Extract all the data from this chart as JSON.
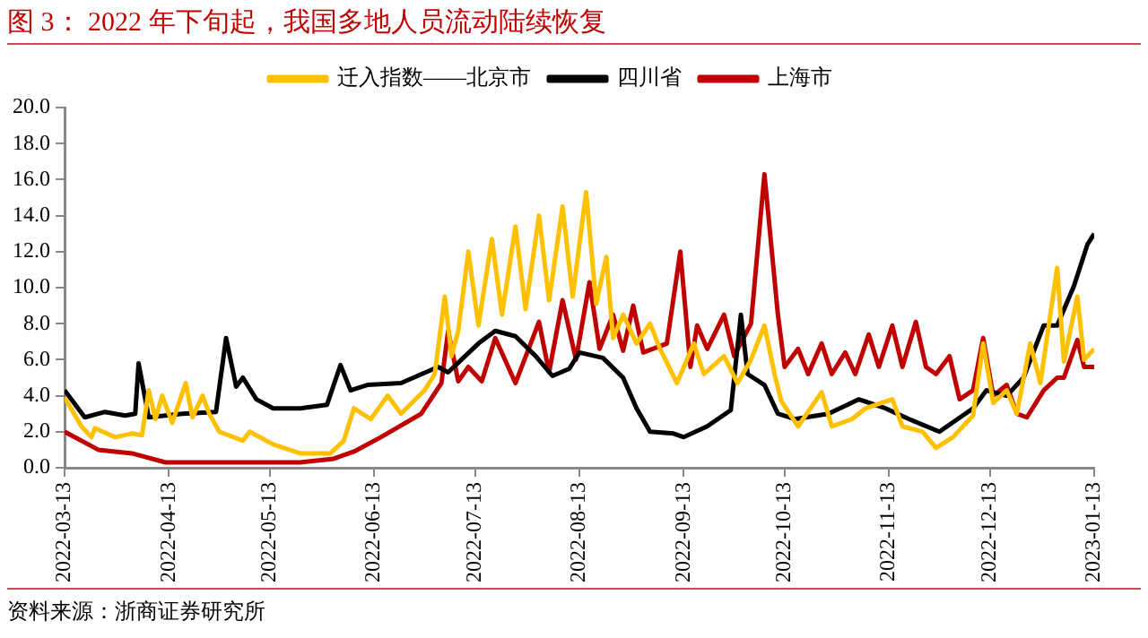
{
  "chart_data": {
    "type": "line",
    "title": "图 3：  2022 年下旬起，我国多地人员流动陆续恢复",
    "annotations": [
      "资料来源：浙商证券研究所"
    ],
    "legend": "top",
    "grid": false,
    "marker": "none",
    "line_style": "solid",
    "xlim": [
      "2022-03-13",
      "2023-01-13"
    ],
    "xticks": [
      "2022-03-13",
      "2022-04-13",
      "2022-05-13",
      "2022-06-13",
      "2022-07-13",
      "2022-08-13",
      "2022-09-13",
      "2022-10-13",
      "2022-11-13",
      "2022-12-13",
      "2023-01-13"
    ],
    "ylim": [
      0,
      20
    ],
    "yticks": [
      {
        "value": 0,
        "label": "0.0"
      },
      {
        "value": 2,
        "label": "2.0"
      },
      {
        "value": 4,
        "label": "4.0"
      },
      {
        "value": 6,
        "label": "6.0"
      },
      {
        "value": 8,
        "label": "8.0"
      },
      {
        "value": 10,
        "label": "10.0"
      },
      {
        "value": 12,
        "label": "12.0"
      },
      {
        "value": 14,
        "label": "14.0"
      },
      {
        "value": 16,
        "label": "16.0"
      },
      {
        "value": 18,
        "label": "18.0"
      },
      {
        "value": 20,
        "label": "20.0"
      }
    ],
    "series": [
      {
        "name": "迁入指数——北京市",
        "color": "#ffc000",
        "x": [
          "2022-03-13",
          "2022-03-18",
          "2022-03-21",
          "2022-03-22",
          "2022-03-28",
          "2022-04-02",
          "2022-04-05",
          "2022-04-07",
          "2022-04-09",
          "2022-04-11",
          "2022-04-14",
          "2022-04-18",
          "2022-04-20",
          "2022-04-23",
          "2022-04-25",
          "2022-04-28",
          "2022-05-05",
          "2022-05-07",
          "2022-05-14",
          "2022-05-22",
          "2022-05-31",
          "2022-06-04",
          "2022-06-07",
          "2022-06-12",
          "2022-06-17",
          "2022-06-21",
          "2022-06-28",
          "2022-07-01",
          "2022-07-04",
          "2022-07-06",
          "2022-07-08",
          "2022-07-11",
          "2022-07-14",
          "2022-07-18",
          "2022-07-21",
          "2022-07-25",
          "2022-07-28",
          "2022-08-01",
          "2022-08-04",
          "2022-08-08",
          "2022-08-11",
          "2022-08-15",
          "2022-08-18",
          "2022-08-21",
          "2022-08-23",
          "2022-08-26",
          "2022-08-30",
          "2022-09-03",
          "2022-09-06",
          "2022-09-11",
          "2022-09-16",
          "2022-09-19",
          "2022-09-25",
          "2022-09-29",
          "2022-10-03",
          "2022-10-07",
          "2022-10-10",
          "2022-10-12",
          "2022-10-17",
          "2022-10-24",
          "2022-10-27",
          "2022-11-02",
          "2022-11-06",
          "2022-11-14",
          "2022-11-17",
          "2022-11-23",
          "2022-11-27",
          "2022-12-02",
          "2022-12-08",
          "2022-12-11",
          "2022-12-14",
          "2022-12-18",
          "2022-12-21",
          "2022-12-25",
          "2022-12-28",
          "2023-01-02",
          "2023-01-04",
          "2023-01-08",
          "2023-01-10",
          "2023-01-13"
        ],
        "values": [
          3.9,
          2.3,
          1.7,
          2.2,
          1.7,
          1.9,
          1.8,
          4.3,
          2.7,
          4.0,
          2.5,
          4.7,
          2.8,
          4.0,
          3.0,
          2.0,
          1.5,
          2.0,
          1.3,
          0.8,
          0.8,
          1.5,
          3.3,
          2.7,
          4.0,
          3.0,
          4.3,
          5.2,
          9.5,
          6.2,
          7.6,
          12.0,
          7.9,
          12.7,
          8.5,
          13.4,
          8.8,
          14.0,
          9.3,
          14.5,
          9.5,
          15.3,
          9.1,
          11.7,
          7.2,
          8.5,
          6.9,
          8.0,
          6.6,
          4.7,
          6.9,
          5.2,
          6.2,
          4.7,
          6.0,
          7.9,
          5.2,
          3.7,
          2.3,
          4.2,
          2.3,
          2.7,
          3.3,
          3.8,
          2.3,
          2.0,
          1.1,
          1.7,
          2.9,
          6.9,
          3.6,
          4.3,
          3.0,
          6.9,
          4.7,
          11.1,
          5.9,
          9.5,
          6.0,
          6.6
        ]
      },
      {
        "name": "四川省",
        "color": "#000000",
        "x": [
          "2022-03-13",
          "2022-03-19",
          "2022-03-25",
          "2022-03-31",
          "2022-04-03",
          "2022-04-04",
          "2022-04-07",
          "2022-04-17",
          "2022-04-27",
          "2022-04-30",
          "2022-05-03",
          "2022-05-05",
          "2022-05-09",
          "2022-05-14",
          "2022-05-22",
          "2022-05-30",
          "2022-06-03",
          "2022-06-06",
          "2022-06-11",
          "2022-06-21",
          "2022-07-02",
          "2022-07-05",
          "2022-07-14",
          "2022-07-19",
          "2022-07-25",
          "2022-07-31",
          "2022-08-05",
          "2022-08-10",
          "2022-08-13",
          "2022-08-20",
          "2022-08-26",
          "2022-08-30",
          "2022-09-03",
          "2022-09-10",
          "2022-09-13",
          "2022-09-20",
          "2022-09-27",
          "2022-09-30",
          "2022-10-02",
          "2022-10-07",
          "2022-10-11",
          "2022-10-16",
          "2022-10-26",
          "2022-11-04",
          "2022-11-12",
          "2022-11-19",
          "2022-11-28",
          "2022-12-08",
          "2022-12-12",
          "2022-12-18",
          "2022-12-23",
          "2022-12-29",
          "2023-01-02",
          "2023-01-07",
          "2023-01-11",
          "2023-01-13"
        ],
        "values": [
          4.3,
          2.8,
          3.1,
          2.9,
          3.0,
          5.8,
          2.8,
          3.0,
          3.1,
          7.2,
          4.5,
          5.0,
          3.8,
          3.3,
          3.3,
          3.5,
          5.7,
          4.3,
          4.6,
          4.7,
          5.6,
          5.3,
          6.9,
          7.6,
          7.3,
          6.2,
          5.1,
          5.5,
          6.4,
          6.1,
          5.0,
          3.3,
          2.0,
          1.9,
          1.7,
          2.3,
          3.2,
          8.5,
          5.2,
          4.6,
          3.0,
          2.7,
          3.0,
          3.8,
          3.3,
          2.7,
          2.0,
          3.3,
          4.3,
          4.0,
          5.0,
          7.9,
          7.9,
          10.1,
          12.4,
          13.0
        ]
      },
      {
        "name": "上海市",
        "color": "#c00000",
        "x": [
          "2022-03-13",
          "2022-03-23",
          "2022-04-02",
          "2022-04-12",
          "2022-05-02",
          "2022-05-22",
          "2022-06-01",
          "2022-06-07",
          "2022-06-15",
          "2022-06-27",
          "2022-07-03",
          "2022-07-05",
          "2022-07-08",
          "2022-07-11",
          "2022-07-15",
          "2022-07-19",
          "2022-07-25",
          "2022-08-01",
          "2022-08-04",
          "2022-08-08",
          "2022-08-12",
          "2022-08-16",
          "2022-08-19",
          "2022-08-23",
          "2022-08-26",
          "2022-08-29",
          "2022-09-01",
          "2022-09-08",
          "2022-09-12",
          "2022-09-15",
          "2022-09-17",
          "2022-09-20",
          "2022-09-25",
          "2022-09-28",
          "2022-10-03",
          "2022-10-07",
          "2022-10-11",
          "2022-10-13",
          "2022-10-17",
          "2022-10-20",
          "2022-10-24",
          "2022-10-27",
          "2022-10-31",
          "2022-11-03",
          "2022-11-07",
          "2022-11-10",
          "2022-11-14",
          "2022-11-17",
          "2022-11-21",
          "2022-11-24",
          "2022-11-27",
          "2022-12-01",
          "2022-12-04",
          "2022-12-08",
          "2022-12-11",
          "2022-12-14",
          "2022-12-18",
          "2022-12-21",
          "2022-12-24",
          "2022-12-29",
          "2023-01-02",
          "2023-01-04",
          "2023-01-08",
          "2023-01-10",
          "2023-01-13"
        ],
        "values": [
          2.0,
          1.0,
          0.8,
          0.3,
          0.3,
          0.3,
          0.5,
          0.9,
          1.7,
          3.0,
          4.7,
          7.6,
          4.8,
          5.6,
          4.8,
          7.2,
          4.7,
          8.1,
          5.3,
          9.3,
          6.0,
          10.3,
          6.6,
          8.5,
          6.5,
          9.0,
          6.4,
          6.9,
          12.0,
          5.6,
          7.9,
          6.6,
          8.5,
          6.2,
          8.0,
          16.3,
          8.5,
          5.6,
          6.6,
          5.2,
          6.9,
          5.2,
          6.4,
          5.2,
          7.4,
          5.6,
          7.9,
          5.6,
          8.1,
          5.6,
          5.2,
          6.2,
          3.8,
          4.3,
          7.2,
          4.0,
          4.6,
          3.0,
          2.8,
          4.3,
          5.0,
          5.0,
          7.1,
          5.6,
          5.6
        ]
      }
    ]
  }
}
